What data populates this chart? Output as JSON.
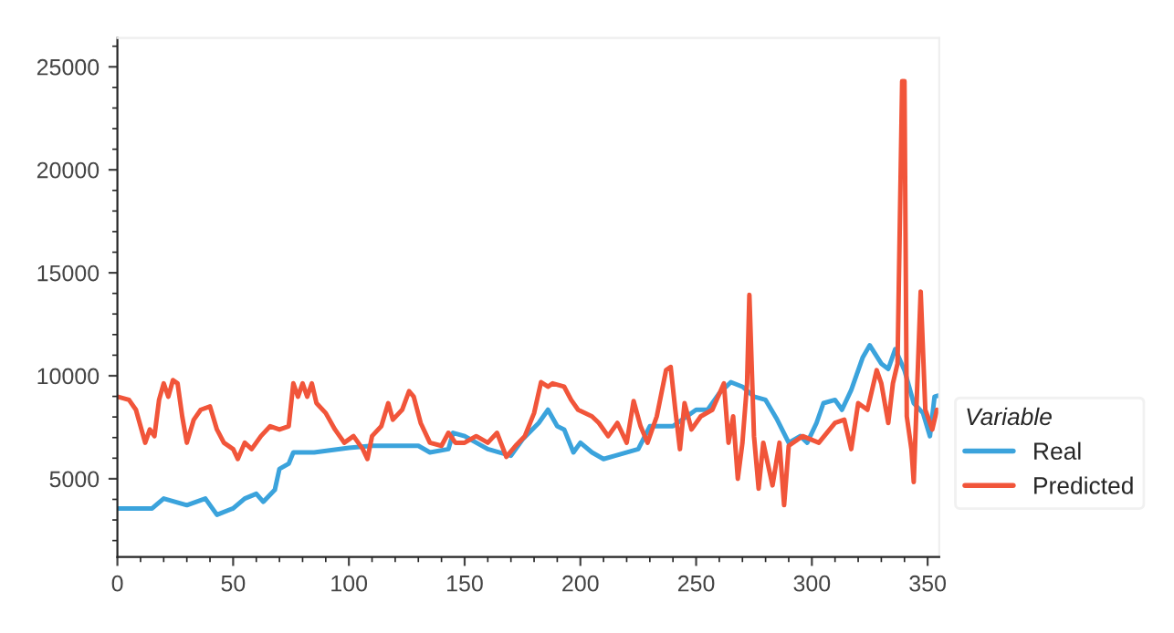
{
  "chart_data": {
    "type": "line",
    "legend_title": "Variable",
    "legend": "right",
    "grid": false,
    "xlim": [
      0,
      355
    ],
    "xticks": [
      0,
      50,
      100,
      150,
      200,
      250,
      300,
      350
    ],
    "ylim": [
      1200,
      26400
    ],
    "yticks": [
      5000,
      10000,
      15000,
      20000,
      25000
    ],
    "series": [
      {
        "name": "Real",
        "color": "#3ba3dc",
        "x": [
          0,
          15,
          20,
          30,
          38,
          43,
          50,
          55,
          60,
          63,
          68,
          70,
          74,
          76,
          85,
          100,
          110,
          130,
          135,
          143,
          145,
          150,
          160,
          170,
          175,
          182,
          186,
          190,
          193,
          197,
          200,
          205,
          210,
          215,
          225,
          230,
          240,
          250,
          255,
          260,
          265,
          270,
          275,
          280,
          285,
          290,
          295,
          298,
          302,
          305,
          310,
          313,
          317,
          322,
          325,
          330,
          333,
          336,
          340,
          344,
          348,
          351,
          353,
          355
        ],
        "values": [
          3560,
          3560,
          4040,
          3720,
          4040,
          3250,
          3560,
          4040,
          4270,
          3880,
          4460,
          5480,
          5730,
          6280,
          6280,
          6500,
          6600,
          6600,
          6280,
          6440,
          7230,
          7070,
          6440,
          6120,
          6910,
          7710,
          8350,
          7550,
          7390,
          6280,
          6750,
          6280,
          5960,
          6120,
          6440,
          7550,
          7550,
          8350,
          8350,
          9150,
          9690,
          9470,
          8990,
          8830,
          7870,
          6750,
          7070,
          6750,
          7710,
          8670,
          8830,
          8350,
          9310,
          10900,
          11480,
          10590,
          10330,
          11290,
          10270,
          8670,
          8190,
          7070,
          8990,
          9050
        ]
      },
      {
        "name": "Predicted",
        "color": "#f1553a",
        "x": [
          0,
          5,
          8,
          12,
          14,
          16,
          18,
          20,
          22,
          24,
          26,
          28,
          30,
          33,
          36,
          40,
          43,
          46,
          50,
          52,
          55,
          58,
          62,
          66,
          70,
          74,
          76,
          78,
          80,
          82,
          84,
          86,
          90,
          94,
          98,
          102,
          106,
          108,
          110,
          114,
          117,
          119,
          123,
          126,
          128,
          131,
          135,
          140,
          143,
          146,
          150,
          155,
          160,
          164,
          168,
          172,
          176,
          180,
          183,
          186,
          188,
          193,
          196,
          199,
          205,
          208,
          212,
          216,
          220,
          223,
          226,
          229,
          233,
          237,
          239,
          241,
          243,
          245,
          248,
          252,
          257,
          262,
          264,
          266,
          268,
          270,
          272,
          273,
          275,
          277,
          279,
          283,
          286,
          288,
          290,
          296,
          303,
          310,
          314,
          317,
          320,
          324,
          328,
          330,
          333,
          335,
          337,
          339,
          340,
          341,
          343,
          344,
          347,
          349,
          352,
          354
        ],
        "values": [
          8990,
          8830,
          8350,
          6750,
          7390,
          7070,
          8830,
          9630,
          8990,
          9790,
          9630,
          8030,
          6750,
          7870,
          8350,
          8510,
          7390,
          6750,
          6440,
          5960,
          6750,
          6440,
          7070,
          7550,
          7390,
          7550,
          9630,
          8990,
          9630,
          8990,
          9630,
          8670,
          8190,
          7390,
          6750,
          7070,
          6440,
          5960,
          7070,
          7550,
          8670,
          7870,
          8350,
          9250,
          8990,
          7710,
          6750,
          6600,
          7230,
          6750,
          6750,
          7070,
          6750,
          7230,
          6060,
          6600,
          7070,
          8190,
          9690,
          9470,
          9630,
          9470,
          8830,
          8350,
          8030,
          7710,
          7070,
          7710,
          6750,
          8770,
          7550,
          6750,
          8030,
          10270,
          10430,
          8350,
          6440,
          8670,
          7390,
          8030,
          8350,
          9630,
          6750,
          8030,
          5000,
          6750,
          9630,
          13930,
          7070,
          4520,
          6750,
          4680,
          6750,
          3720,
          6600,
          7070,
          6750,
          7710,
          7870,
          6440,
          8670,
          8350,
          10270,
          9630,
          7710,
          9630,
          10590,
          24300,
          24300,
          8030,
          6440,
          4840,
          14090,
          8350,
          7390,
          8350
        ]
      }
    ]
  }
}
